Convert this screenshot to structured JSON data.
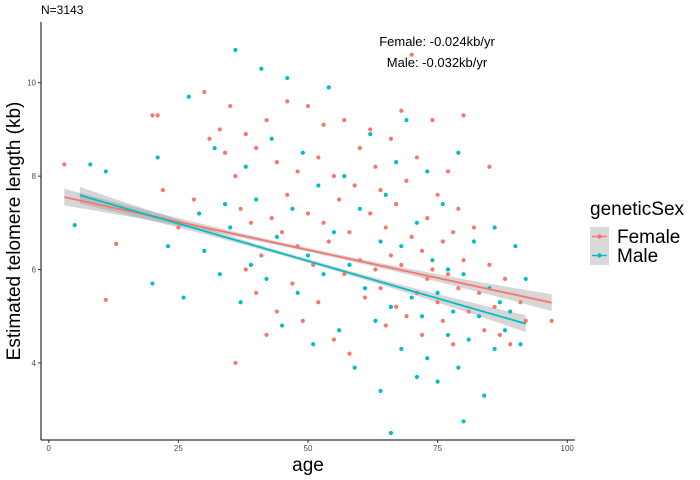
{
  "chart_data": {
    "type": "scatter",
    "subtitle": "N=3143",
    "xlabel": "age",
    "ylabel": "Estimated telomere length (kb)",
    "xlim": [
      -1.5,
      101.5
    ],
    "ylim": [
      2.35,
      11.3
    ],
    "xticks": [
      0,
      25,
      50,
      75,
      100
    ],
    "yticks": [
      4,
      6,
      8,
      10
    ],
    "grid": false,
    "legend": {
      "title": "geneticSex",
      "position": "right",
      "entries": [
        "Female",
        "Male"
      ]
    },
    "annotations": [
      "Female: -0.024kb/yr",
      "Male: -0.032kb/yr"
    ],
    "series": [
      {
        "name": "Female",
        "color": "#F8766D",
        "trend": {
          "x": [
            3,
            97
          ],
          "y": [
            7.55,
            5.29
          ],
          "slope": -0.024
        },
        "points": [
          [
            3,
            8.25
          ],
          [
            11,
            5.35
          ],
          [
            13,
            6.55
          ],
          [
            20,
            9.3
          ],
          [
            21,
            9.3
          ],
          [
            22,
            7.7
          ],
          [
            25,
            6.9
          ],
          [
            28,
            7.5
          ],
          [
            30,
            9.8
          ],
          [
            31,
            8.8
          ],
          [
            33,
            9.0
          ],
          [
            34,
            8.5
          ],
          [
            35,
            9.5
          ],
          [
            36,
            8.0
          ],
          [
            36,
            4.0
          ],
          [
            37,
            7.3
          ],
          [
            38,
            8.9
          ],
          [
            38,
            6.0
          ],
          [
            39,
            7.0
          ],
          [
            40,
            5.5
          ],
          [
            40,
            8.6
          ],
          [
            41,
            6.3
          ],
          [
            42,
            9.2
          ],
          [
            42,
            4.6
          ],
          [
            43,
            7.1
          ],
          [
            44,
            8.3
          ],
          [
            44,
            5.1
          ],
          [
            45,
            6.8
          ],
          [
            46,
            9.6
          ],
          [
            46,
            7.6
          ],
          [
            47,
            5.7
          ],
          [
            48,
            6.5
          ],
          [
            48,
            8.1
          ],
          [
            49,
            4.9
          ],
          [
            50,
            7.2
          ],
          [
            50,
            9.5
          ],
          [
            51,
            6.1
          ],
          [
            52,
            8.4
          ],
          [
            52,
            5.3
          ],
          [
            53,
            7.0
          ],
          [
            53,
            9.1
          ],
          [
            54,
            6.6
          ],
          [
            55,
            4.5
          ],
          [
            55,
            8.0
          ],
          [
            56,
            7.5
          ],
          [
            57,
            5.9
          ],
          [
            57,
            9.2
          ],
          [
            58,
            6.8
          ],
          [
            58,
            4.2
          ],
          [
            59,
            7.8
          ],
          [
            60,
            6.2
          ],
          [
            60,
            8.6
          ],
          [
            61,
            5.4
          ],
          [
            62,
            7.2
          ],
          [
            62,
            9.0
          ],
          [
            63,
            6.0
          ],
          [
            63,
            8.2
          ],
          [
            64,
            5.6
          ],
          [
            64,
            7.7
          ],
          [
            65,
            4.8
          ],
          [
            65,
            6.9
          ],
          [
            66,
            8.8
          ],
          [
            66,
            6.3
          ],
          [
            67,
            5.2
          ],
          [
            67,
            7.4
          ],
          [
            68,
            9.4
          ],
          [
            68,
            6.1
          ],
          [
            69,
            5.0
          ],
          [
            69,
            7.9
          ],
          [
            70,
            10.6
          ],
          [
            70,
            6.7
          ],
          [
            71,
            5.5
          ],
          [
            71,
            8.4
          ],
          [
            72,
            6.4
          ],
          [
            72,
            4.6
          ],
          [
            73,
            7.1
          ],
          [
            73,
            5.8
          ],
          [
            74,
            9.2
          ],
          [
            74,
            6.0
          ],
          [
            75,
            5.3
          ],
          [
            75,
            7.6
          ],
          [
            76,
            6.6
          ],
          [
            76,
            4.9
          ],
          [
            77,
            8.1
          ],
          [
            77,
            5.9
          ],
          [
            78,
            6.8
          ],
          [
            78,
            4.4
          ],
          [
            79,
            7.3
          ],
          [
            79,
            5.6
          ],
          [
            80,
            6.2
          ],
          [
            80,
            9.3
          ],
          [
            81,
            5.1
          ],
          [
            82,
            6.9
          ],
          [
            83,
            5.5
          ],
          [
            84,
            4.7
          ],
          [
            85,
            8.2
          ],
          [
            85,
            6.1
          ],
          [
            86,
            5.2
          ],
          [
            87,
            4.6
          ],
          [
            88,
            5.8
          ],
          [
            89,
            4.4
          ],
          [
            91,
            5.3
          ],
          [
            92,
            4.9
          ],
          [
            97,
            4.9
          ]
        ]
      },
      {
        "name": "Male",
        "color": "#00BFC4",
        "trend": {
          "x": [
            6,
            92
          ],
          "y": [
            7.59,
            4.84
          ],
          "slope": -0.032
        },
        "points": [
          [
            5,
            6.95
          ],
          [
            8,
            8.25
          ],
          [
            11,
            8.1
          ],
          [
            20,
            5.7
          ],
          [
            21,
            8.4
          ],
          [
            23,
            6.5
          ],
          [
            26,
            5.4
          ],
          [
            27,
            9.7
          ],
          [
            29,
            7.2
          ],
          [
            30,
            6.4
          ],
          [
            32,
            8.6
          ],
          [
            33,
            5.9
          ],
          [
            34,
            7.4
          ],
          [
            35,
            6.9
          ],
          [
            36,
            10.7
          ],
          [
            37,
            5.3
          ],
          [
            38,
            8.2
          ],
          [
            39,
            6.1
          ],
          [
            40,
            7.5
          ],
          [
            41,
            10.3
          ],
          [
            42,
            5.8
          ],
          [
            43,
            8.8
          ],
          [
            44,
            6.7
          ],
          [
            45,
            4.8
          ],
          [
            46,
            10.1
          ],
          [
            47,
            7.3
          ],
          [
            48,
            5.5
          ],
          [
            49,
            8.5
          ],
          [
            50,
            6.3
          ],
          [
            51,
            4.4
          ],
          [
            52,
            7.8
          ],
          [
            53,
            5.9
          ],
          [
            54,
            9.9
          ],
          [
            55,
            6.8
          ],
          [
            56,
            4.7
          ],
          [
            57,
            8.0
          ],
          [
            58,
            6.1
          ],
          [
            59,
            3.9
          ],
          [
            60,
            7.3
          ],
          [
            61,
            5.6
          ],
          [
            62,
            8.9
          ],
          [
            63,
            4.9
          ],
          [
            64,
            6.6
          ],
          [
            64,
            3.4
          ],
          [
            65,
            7.6
          ],
          [
            66,
            5.2
          ],
          [
            66,
            2.5
          ],
          [
            67,
            8.3
          ],
          [
            68,
            4.3
          ],
          [
            68,
            6.5
          ],
          [
            69,
            9.2
          ],
          [
            70,
            5.4
          ],
          [
            71,
            3.7
          ],
          [
            71,
            7.0
          ],
          [
            72,
            5.0
          ],
          [
            73,
            8.1
          ],
          [
            73,
            4.1
          ],
          [
            74,
            6.2
          ],
          [
            75,
            5.5
          ],
          [
            75,
            3.6
          ],
          [
            76,
            7.4
          ],
          [
            77,
            4.6
          ],
          [
            77,
            6.0
          ],
          [
            78,
            5.1
          ],
          [
            79,
            3.9
          ],
          [
            79,
            8.5
          ],
          [
            80,
            2.75
          ],
          [
            80,
            5.9
          ],
          [
            81,
            4.5
          ],
          [
            82,
            6.6
          ],
          [
            83,
            5.0
          ],
          [
            84,
            3.3
          ],
          [
            85,
            5.6
          ],
          [
            86,
            6.9
          ],
          [
            86,
            4.3
          ],
          [
            87,
            5.3
          ],
          [
            88,
            4.7
          ],
          [
            89,
            5.1
          ],
          [
            90,
            6.5
          ],
          [
            91,
            4.4
          ],
          [
            92,
            5.8
          ]
        ]
      }
    ]
  }
}
